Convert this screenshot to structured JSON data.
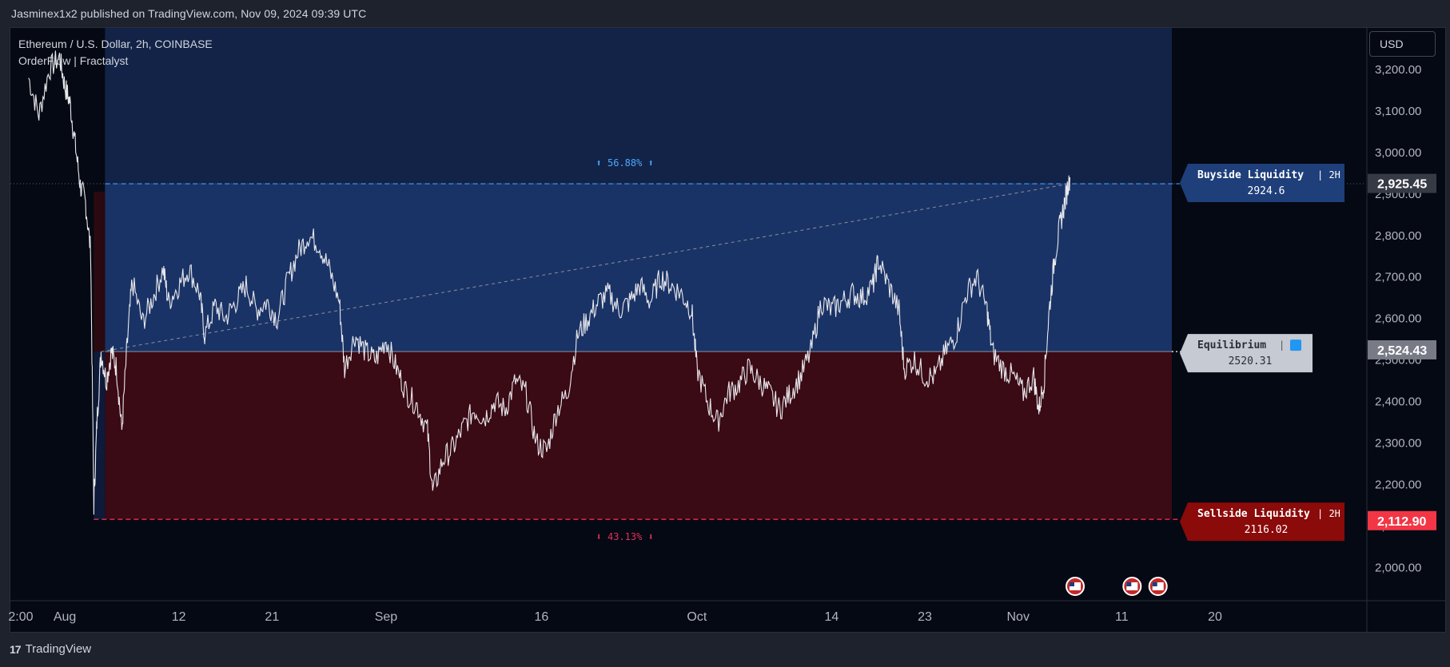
{
  "header": {
    "publish_line": "Jasminex1x2 published on TradingView.com, Nov 09, 2024 09:39 UTC"
  },
  "legend": {
    "symbol_line": "Ethereum / U.S. Dollar, 2h, COINBASE",
    "indicator_line": "OrderFlow | Fractalyst"
  },
  "price_axis": {
    "unit_button": "USD"
  },
  "footer": {
    "brand": "TradingView",
    "logo_glyph": "17"
  },
  "chart_data": {
    "type": "candlestick-line",
    "ylim": [
      1920,
      3300
    ],
    "y_ticks": [
      {
        "value": 2000,
        "label": "2,000.00"
      },
      {
        "value": 2100,
        "label": "2,100.00"
      },
      {
        "value": 2200,
        "label": "2,200.00"
      },
      {
        "value": 2300,
        "label": "2,300.00"
      },
      {
        "value": 2400,
        "label": "2,400.00"
      },
      {
        "value": 2500,
        "label": "2,500.00"
      },
      {
        "value": 2600,
        "label": "2,600.00"
      },
      {
        "value": 2700,
        "label": "2,700.00"
      },
      {
        "value": 2800,
        "label": "2,800.00"
      },
      {
        "value": 2900,
        "label": "2,900.00"
      },
      {
        "value": 3000,
        "label": "3,000.00"
      },
      {
        "value": 3100,
        "label": "3,100.00"
      },
      {
        "value": 3200,
        "label": "3,200.00"
      }
    ],
    "x_ticks": [
      {
        "day": -3.25,
        "label": "2:00"
      },
      {
        "day": 1,
        "label": "Aug"
      },
      {
        "day": 12,
        "label": "12"
      },
      {
        "day": 21,
        "label": "21"
      },
      {
        "day": 32,
        "label": "Sep"
      },
      {
        "day": 47,
        "label": "16"
      },
      {
        "day": 62,
        "label": "Oct"
      },
      {
        "day": 75,
        "label": "14"
      },
      {
        "day": 84,
        "label": "23"
      },
      {
        "day": 93,
        "label": "Nov"
      },
      {
        "day": 103,
        "label": "11"
      },
      {
        "day": 112,
        "label": "20"
      }
    ],
    "x_domain_days": [
      -4.25,
      126.5
    ],
    "price_path": [
      [
        -2.5,
        3180
      ],
      [
        -1.5,
        3090
      ],
      [
        -0.5,
        3200
      ],
      [
        0.5,
        3230
      ],
      [
        1.0,
        3160
      ],
      [
        1.5,
        3120
      ],
      [
        2.0,
        3020
      ],
      [
        2.5,
        2920
      ],
      [
        3.0,
        2880
      ],
      [
        3.5,
        2760
      ],
      [
        3.8,
        2150
      ],
      [
        4.1,
        2350
      ],
      [
        4.5,
        2520
      ],
      [
        5.0,
        2450
      ],
      [
        5.5,
        2520
      ],
      [
        6.0,
        2480
      ],
      [
        6.5,
        2330
      ],
      [
        7.0,
        2530
      ],
      [
        7.5,
        2690
      ],
      [
        8.5,
        2590
      ],
      [
        9.5,
        2650
      ],
      [
        10.5,
        2720
      ],
      [
        11.0,
        2640
      ],
      [
        12.0,
        2680
      ],
      [
        13.0,
        2720
      ],
      [
        14.0,
        2660
      ],
      [
        14.5,
        2560
      ],
      [
        15.5,
        2630
      ],
      [
        16.5,
        2600
      ],
      [
        17.5,
        2640
      ],
      [
        18.5,
        2680
      ],
      [
        19.5,
        2620
      ],
      [
        20.5,
        2640
      ],
      [
        21.5,
        2600
      ],
      [
        22.5,
        2690
      ],
      [
        23.5,
        2760
      ],
      [
        24.5,
        2800
      ],
      [
        25.5,
        2780
      ],
      [
        26.5,
        2720
      ],
      [
        27.5,
        2640
      ],
      [
        28.0,
        2480
      ],
      [
        29.0,
        2560
      ],
      [
        30.0,
        2520
      ],
      [
        31.0,
        2500
      ],
      [
        32.0,
        2550
      ],
      [
        33.0,
        2480
      ],
      [
        34.0,
        2420
      ],
      [
        35.0,
        2390
      ],
      [
        36.0,
        2330
      ],
      [
        36.5,
        2180
      ],
      [
        37.5,
        2260
      ],
      [
        38.5,
        2290
      ],
      [
        39.5,
        2340
      ],
      [
        40.5,
        2380
      ],
      [
        41.5,
        2360
      ],
      [
        42.5,
        2400
      ],
      [
        43.5,
        2380
      ],
      [
        44.5,
        2450
      ],
      [
        45.5,
        2420
      ],
      [
        46.5,
        2300
      ],
      [
        47.5,
        2280
      ],
      [
        48.5,
        2380
      ],
      [
        49.5,
        2420
      ],
      [
        50.5,
        2560
      ],
      [
        51.5,
        2600
      ],
      [
        52.5,
        2640
      ],
      [
        53.5,
        2660
      ],
      [
        54.5,
        2620
      ],
      [
        55.5,
        2640
      ],
      [
        56.5,
        2680
      ],
      [
        57.5,
        2640
      ],
      [
        58.5,
        2700
      ],
      [
        59.5,
        2680
      ],
      [
        60.5,
        2660
      ],
      [
        61.5,
        2620
      ],
      [
        62.0,
        2480
      ],
      [
        63.0,
        2400
      ],
      [
        64.0,
        2350
      ],
      [
        65.0,
        2420
      ],
      [
        66.0,
        2440
      ],
      [
        67.0,
        2480
      ],
      [
        68.0,
        2450
      ],
      [
        69.0,
        2420
      ],
      [
        70.0,
        2380
      ],
      [
        71.0,
        2420
      ],
      [
        72.0,
        2460
      ],
      [
        73.0,
        2520
      ],
      [
        74.0,
        2640
      ],
      [
        75.0,
        2620
      ],
      [
        76.0,
        2640
      ],
      [
        77.0,
        2660
      ],
      [
        78.0,
        2650
      ],
      [
        79.0,
        2680
      ],
      [
        79.5,
        2740
      ],
      [
        80.5,
        2680
      ],
      [
        81.5,
        2620
      ],
      [
        82.0,
        2480
      ],
      [
        83.0,
        2500
      ],
      [
        84.0,
        2460
      ],
      [
        85.0,
        2460
      ],
      [
        86.0,
        2520
      ],
      [
        87.0,
        2560
      ],
      [
        88.0,
        2660
      ],
      [
        89.0,
        2700
      ],
      [
        90.0,
        2620
      ],
      [
        90.5,
        2520
      ],
      [
        91.5,
        2480
      ],
      [
        92.5,
        2460
      ],
      [
        93.5,
        2420
      ],
      [
        94.5,
        2460
      ],
      [
        95.0,
        2380
      ],
      [
        95.5,
        2450
      ],
      [
        96.0,
        2620
      ],
      [
        96.5,
        2740
      ],
      [
        97.0,
        2820
      ],
      [
        97.5,
        2880
      ],
      [
        98.0,
        2940
      ]
    ],
    "range_start_day": 3.8,
    "range_end_day": 127.5,
    "buyside_liquidity": {
      "label": "Buyside Liquidity",
      "timeframe": "2H",
      "value": "2924.6",
      "price": 2924.6
    },
    "equilibrium": {
      "label": "Equilibrium",
      "value": "2520.31",
      "price": 2520.31
    },
    "sellside_liquidity": {
      "label": "Sellside Liquidity",
      "timeframe": "2H",
      "value": "2116.02",
      "price": 2116.02
    },
    "upper_percent": "⬆ 56.88% ⬆",
    "lower_percent": "⬇ 43.13% ⬇",
    "price_tags": [
      {
        "value": 2925.45,
        "label": "2,925.45",
        "color": "#363a45"
      },
      {
        "value": 2524.43,
        "label": "2,524.43",
        "color": "#787b86"
      },
      {
        "value": 2112.9,
        "label": "2,112.90",
        "color": "#f23645"
      }
    ],
    "event_flags": [
      {
        "day": 98.5
      },
      {
        "day": 104
      },
      {
        "day": 106.5
      }
    ],
    "colors": {
      "premium_zone": "#1a3366",
      "discount_zone": "#3a0a15",
      "buyside_tag": "#1e3f7a",
      "equilibrium_tag": "#c5cad3",
      "sellside_tag": "#8b0a0a",
      "buyside_line": "#3aa0ff",
      "sellside_line": "#ff3355",
      "upper_percent_text": "#4aa8ff",
      "lower_percent_text": "#e0305a"
    }
  }
}
